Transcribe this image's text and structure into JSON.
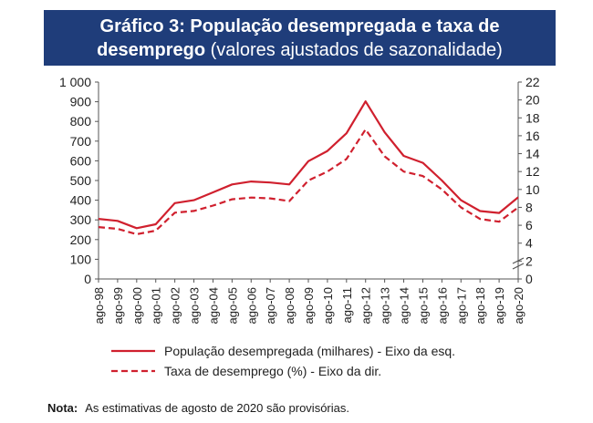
{
  "title": {
    "line1": "Gráfico 3: População desempregada e taxa de",
    "line2_bold": "desemprego",
    "line2_normal": " (valores ajustados de sazonalidade)"
  },
  "chart_data": {
    "type": "line",
    "x_tick_labels": [
      "ago-98",
      "ago-99",
      "ago-00",
      "ago-01",
      "ago-02",
      "ago-03",
      "ago-04",
      "ago-05",
      "ago-06",
      "ago-07",
      "ago-08",
      "ago-09",
      "ago-10",
      "ago-11",
      "ago-12",
      "ago-13",
      "ago-14",
      "ago-15",
      "ago-16",
      "ago-17",
      "ago-18",
      "ago-19",
      "ago-20"
    ],
    "y_left": {
      "min": 0,
      "max": 1000,
      "ticks": [
        "0",
        "100",
        "200",
        "300",
        "400",
        "500",
        "600",
        "700",
        "800",
        "900",
        "1 000"
      ]
    },
    "y_right": {
      "min": 0,
      "max": 22,
      "ticks": [
        "0",
        "2",
        "4",
        "6",
        "8",
        "10",
        "12",
        "14",
        "16",
        "18",
        "20",
        "22"
      ]
    },
    "axis_break": "right-axis-bottom",
    "grid": false,
    "legend_position": "bottom",
    "series": [
      {
        "name": "População desempregada (milhares) - Eixo da esq.",
        "axis": "left",
        "style": "solid",
        "color": "#d0202e",
        "points": [
          [
            "ago-98",
            305
          ],
          [
            "ago-99",
            295
          ],
          [
            "ago-00",
            258
          ],
          [
            "ago-01",
            278
          ],
          [
            "ago-02",
            385
          ],
          [
            "ago-03",
            400
          ],
          [
            "ago-04",
            440
          ],
          [
            "ago-05",
            480
          ],
          [
            "ago-06",
            495
          ],
          [
            "ago-07",
            490
          ],
          [
            "ago-08",
            480
          ],
          [
            "ago-09",
            598
          ],
          [
            "ago-10",
            650
          ],
          [
            "ago-11",
            740
          ],
          [
            "ago-12",
            902
          ],
          [
            "ago-13",
            745
          ],
          [
            "ago-14",
            625
          ],
          [
            "ago-15",
            590
          ],
          [
            "ago-16",
            500
          ],
          [
            "ago-17",
            400
          ],
          [
            "ago-18",
            345
          ],
          [
            "ago-19",
            335
          ],
          [
            "ago-20",
            415
          ]
        ]
      },
      {
        "name": "Taxa de desemprego (%) - Eixo da dir.",
        "axis": "right",
        "style": "dashed",
        "color": "#d0202e",
        "points": [
          [
            "ago-98",
            5.8
          ],
          [
            "ago-99",
            5.6
          ],
          [
            "ago-00",
            5.0
          ],
          [
            "ago-01",
            5.4
          ],
          [
            "ago-02",
            7.4
          ],
          [
            "ago-03",
            7.6
          ],
          [
            "ago-04",
            8.2
          ],
          [
            "ago-05",
            8.9
          ],
          [
            "ago-06",
            9.1
          ],
          [
            "ago-07",
            9.0
          ],
          [
            "ago-08",
            8.7
          ],
          [
            "ago-09",
            11.0
          ],
          [
            "ago-10",
            12.0
          ],
          [
            "ago-11",
            13.4
          ],
          [
            "ago-12",
            16.7
          ],
          [
            "ago-13",
            13.7
          ],
          [
            "ago-14",
            12.0
          ],
          [
            "ago-15",
            11.5
          ],
          [
            "ago-16",
            10.0
          ],
          [
            "ago-17",
            8.0
          ],
          [
            "ago-18",
            6.7
          ],
          [
            "ago-19",
            6.4
          ],
          [
            "ago-20",
            8.0
          ]
        ]
      }
    ]
  },
  "note": {
    "label": "Nota:",
    "text": "As estimativas de agosto de 2020 são provisórias."
  }
}
